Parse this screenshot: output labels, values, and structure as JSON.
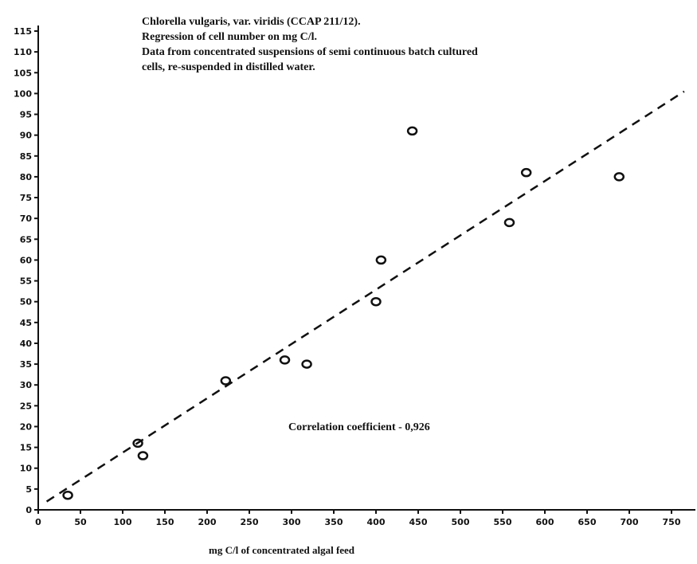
{
  "chart_data": {
    "type": "scatter",
    "title_lines": [
      "Chlorella vulgaris, var. viridis (CCAP 211/12).",
      "Regression of cell number on mg C/l.",
      "Data from concentrated suspensions of semi continuous batch cultured",
      "cells, re-suspended in distilled water."
    ],
    "xlabel": "mg C/l of concentrated algal feed",
    "ylabel": "",
    "annotation": "Correlation coefficient - 0,926",
    "xlim": [
      0,
      750
    ],
    "ylim": [
      0,
      115
    ],
    "x_ticks": [
      0,
      50,
      100,
      150,
      200,
      250,
      300,
      350,
      400,
      450,
      500,
      550,
      600,
      650,
      700,
      750
    ],
    "y_ticks": [
      0,
      5,
      10,
      15,
      20,
      25,
      30,
      35,
      40,
      45,
      50,
      55,
      60,
      65,
      70,
      75,
      80,
      85,
      90,
      95,
      100,
      105,
      110,
      115
    ],
    "series": [
      {
        "points": [
          {
            "x": 35,
            "y": 3.5
          },
          {
            "x": 118,
            "y": 16
          },
          {
            "x": 124,
            "y": 13
          },
          {
            "x": 222,
            "y": 31
          },
          {
            "x": 292,
            "y": 36
          },
          {
            "x": 318,
            "y": 35
          },
          {
            "x": 400,
            "y": 50
          },
          {
            "x": 406,
            "y": 60
          },
          {
            "x": 443,
            "y": 91
          },
          {
            "x": 558,
            "y": 69
          },
          {
            "x": 578,
            "y": 81
          },
          {
            "x": 688,
            "y": 80
          }
        ]
      }
    ],
    "regression_line": {
      "style": "dashed",
      "from": {
        "x": 10,
        "y": 2
      },
      "to": {
        "x": 765,
        "y": 100.5
      }
    },
    "grid": false,
    "colors": {
      "ink": "#111111",
      "background": "#ffffff"
    }
  }
}
